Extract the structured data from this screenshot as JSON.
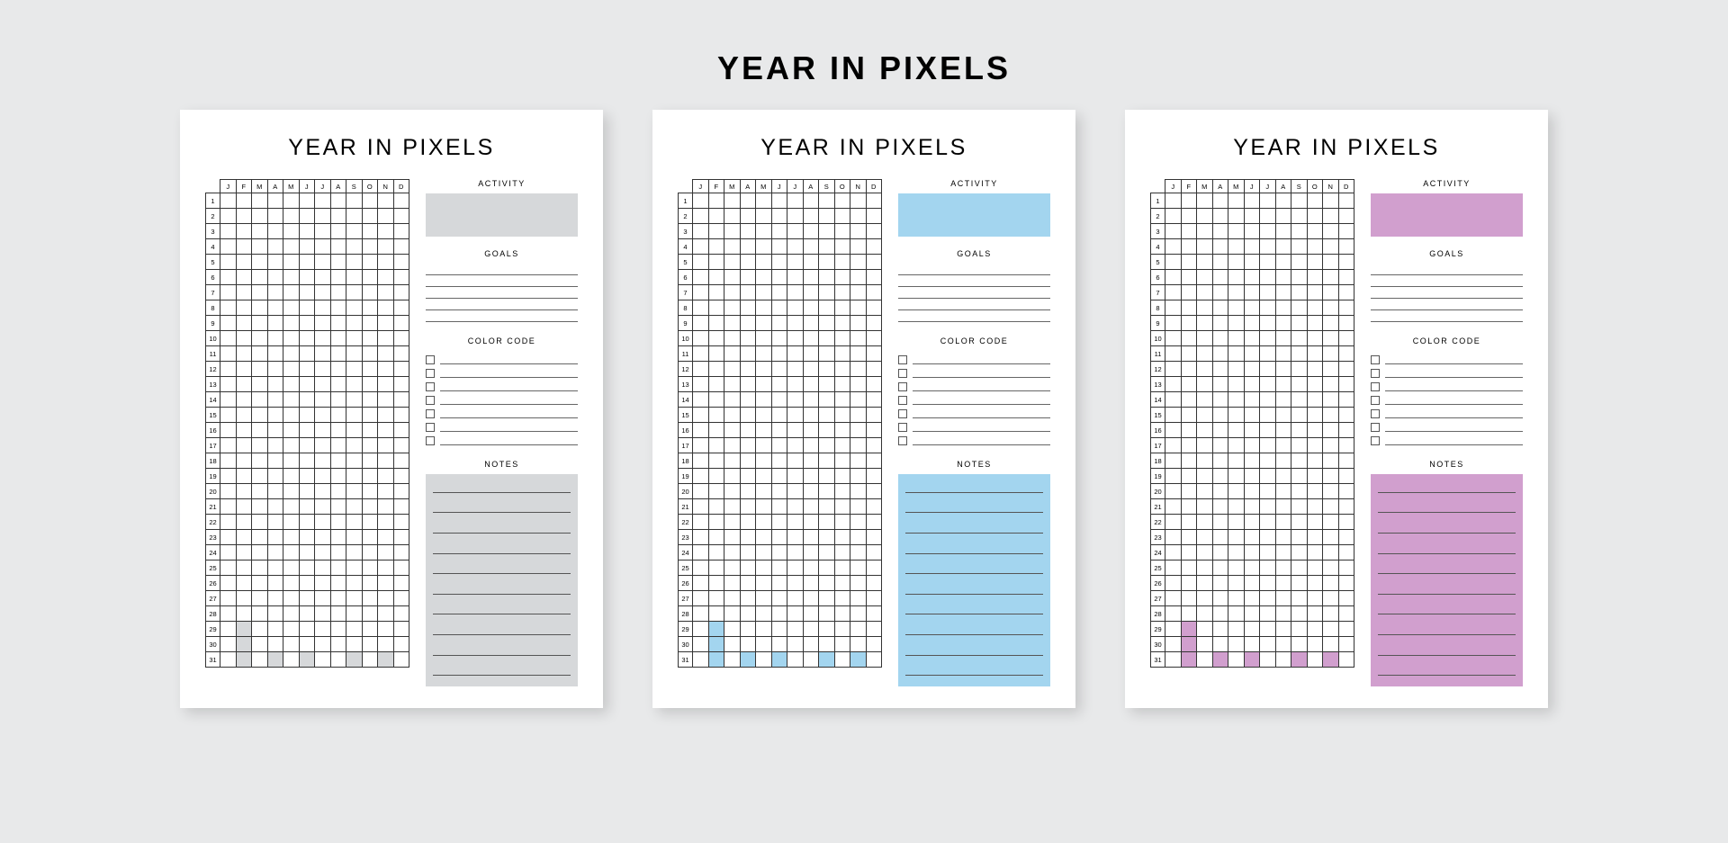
{
  "mainTitle": "YEAR IN PIXELS",
  "months": [
    "J",
    "F",
    "M",
    "A",
    "M",
    "J",
    "J",
    "A",
    "S",
    "O",
    "N",
    "D"
  ],
  "monthLengths": [
    31,
    28,
    31,
    30,
    31,
    30,
    31,
    31,
    30,
    31,
    30,
    31
  ],
  "days": 31,
  "sections": {
    "activity": "ACTIVITY",
    "goals": "GOALS",
    "colorCode": "COLOR CODE",
    "notes": "NOTES"
  },
  "goalsLineCount": 5,
  "colorCodeCount": 7,
  "notesLineCount": 10,
  "gridStyle": {
    "borderColor": "#333333",
    "cellWidthPx": 17.5,
    "cellHeightPx": 17,
    "headerFontSizePt": 7.5
  },
  "pageStyle": {
    "backgroundColor": "#ffffff",
    "shadow": "6px 6px 14px rgba(0,0,0,0.15)",
    "titleFontSizePt": 25,
    "titleLetterSpacingPx": 2.5
  },
  "canvasStyle": {
    "backgroundColor": "#e8e9ea",
    "mainTitleFontSizePt": 36,
    "mainTitleLetterSpacingPx": 3
  },
  "variants": [
    {
      "accentColor": "#d6d8da",
      "invalidCellColor": "#d6d8da"
    },
    {
      "accentColor": "#a3d5ef",
      "invalidCellColor": "#a3d5ef"
    },
    {
      "accentColor": "#d19fce",
      "invalidCellColor": "#d19fce"
    }
  ]
}
